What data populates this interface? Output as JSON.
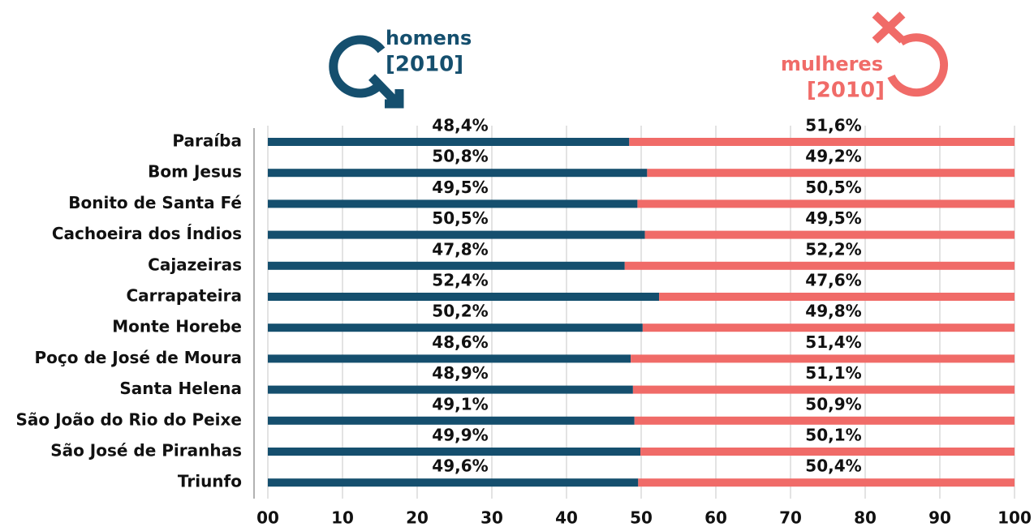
{
  "chart_data": {
    "type": "stacked-bar-horizontal",
    "categories": [
      "Paraíba",
      "Bom Jesus",
      "Bonito de Santa Fé",
      "Cachoeira dos Índios",
      "Cajazeiras",
      "Carrapateira",
      "Monte Horebe",
      "Poço de José de Moura",
      "Santa Helena",
      "São João do Rio do Peixe",
      "São José de Piranhas",
      "Triunfo"
    ],
    "series": [
      {
        "name": "homens",
        "color": "#154f6e",
        "values": [
          48.4,
          50.8,
          49.5,
          50.5,
          47.8,
          52.4,
          50.2,
          48.6,
          48.9,
          49.1,
          49.9,
          49.6
        ],
        "value_labels": [
          "48,4%",
          "50,8%",
          "49,5%",
          "50,5%",
          "47,8%",
          "52,4%",
          "50,2%",
          "48,6%",
          "48,9%",
          "49,1%",
          "49,9%",
          "49,6%"
        ]
      },
      {
        "name": "mulheres",
        "color": "#f06b68",
        "values": [
          51.6,
          49.2,
          50.5,
          49.5,
          52.2,
          47.6,
          49.8,
          51.4,
          51.1,
          50.9,
          50.1,
          50.4
        ],
        "value_labels": [
          "51,6%",
          "49,2%",
          "50,5%",
          "49,5%",
          "52,2%",
          "47,6%",
          "49,8%",
          "51,4%",
          "51,1%",
          "50,9%",
          "50,1%",
          "50,4%"
        ]
      }
    ],
    "legend_year": "[2010]",
    "xlim": [
      0,
      100
    ],
    "xticks": [
      {
        "value": 0,
        "label": "00"
      },
      10,
      20,
      30,
      40,
      50,
      60,
      70,
      80,
      90,
      100
    ],
    "grid": true
  }
}
